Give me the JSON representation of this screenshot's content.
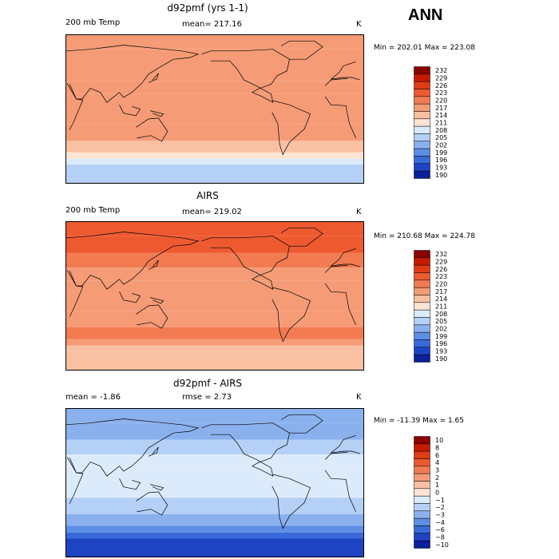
{
  "main_title": "ANN",
  "panels": [
    {
      "title": "d92pmf (yrs 1-1)",
      "left_text": "200 mb Temp",
      "center_text": "mean= 217.16",
      "units": "K",
      "minmax": "Min = 202.01  Max = 223.08"
    },
    {
      "title": "AIRS",
      "left_text": "200 mb Temp",
      "center_text": "mean= 219.02",
      "units": "K",
      "minmax": "Min = 210.68  Max = 224.78"
    },
    {
      "title": "d92pmf - AIRS",
      "left_text": "mean =   -1.86",
      "center_text": "rmse =    2.73",
      "units": "K",
      "minmax": "Min = -11.39  Max =    1.65"
    }
  ],
  "chart_data": [
    {
      "type": "heatmap",
      "title": "d92pmf (yrs 1-1)",
      "variable": "200 mb Temp",
      "units": "K",
      "mean": 217.16,
      "min": 202.01,
      "max": 223.08,
      "levels": [
        "232",
        "229",
        "226",
        "223",
        "220",
        "217",
        "214",
        "211",
        "208",
        "205",
        "202",
        "199",
        "196",
        "193",
        "190"
      ],
      "colors": [
        "#8c0000",
        "#c41a00",
        "#e03c14",
        "#ee5a30",
        "#f27b52",
        "#f59b76",
        "#f9c0a2",
        "#fde4d2",
        "#dcebfc",
        "#b5d0f6",
        "#8ab1ee",
        "#5f8ee6",
        "#3a6ad9",
        "#1e44c4",
        "#0a1f9c"
      ],
      "bands": [
        {
          "lat_from": 90,
          "lat_to": 72,
          "level": 217
        },
        {
          "lat_from": 72,
          "lat_to": 52,
          "level": 217
        },
        {
          "lat_from": 52,
          "lat_to": 34,
          "level": 217
        },
        {
          "lat_from": 34,
          "lat_to": 18,
          "level": 217
        },
        {
          "lat_from": 18,
          "lat_to": -18,
          "level": 217
        },
        {
          "lat_from": -18,
          "lat_to": -38,
          "level": 217
        },
        {
          "lat_from": -38,
          "lat_to": -52,
          "level": 214
        },
        {
          "lat_from": -52,
          "lat_to": -60,
          "level": 211
        },
        {
          "lat_from": -60,
          "lat_to": -67,
          "level": 208
        },
        {
          "lat_from": -67,
          "lat_to": -90,
          "level": 205
        }
      ]
    },
    {
      "type": "heatmap",
      "title": "AIRS",
      "variable": "200 mb Temp",
      "units": "K",
      "mean": 219.02,
      "min": 210.68,
      "max": 224.78,
      "levels": [
        "232",
        "229",
        "226",
        "223",
        "220",
        "217",
        "214",
        "211",
        "208",
        "205",
        "202",
        "199",
        "196",
        "193",
        "190"
      ],
      "colors": [
        "#8c0000",
        "#c41a00",
        "#e03c14",
        "#ee5a30",
        "#f27b52",
        "#f59b76",
        "#f9c0a2",
        "#fde4d2",
        "#dcebfc",
        "#b5d0f6",
        "#8ab1ee",
        "#5f8ee6",
        "#3a6ad9",
        "#1e44c4",
        "#0a1f9c"
      ],
      "bands": [
        {
          "lat_from": 90,
          "lat_to": 72,
          "level": 223
        },
        {
          "lat_from": 72,
          "lat_to": 52,
          "level": 223
        },
        {
          "lat_from": 52,
          "lat_to": 34,
          "level": 220
        },
        {
          "lat_from": 34,
          "lat_to": 18,
          "level": 217
        },
        {
          "lat_from": 18,
          "lat_to": -18,
          "level": 217
        },
        {
          "lat_from": -18,
          "lat_to": -38,
          "level": 217
        },
        {
          "lat_from": -38,
          "lat_to": -52,
          "level": 220
        },
        {
          "lat_from": -52,
          "lat_to": -60,
          "level": 217
        },
        {
          "lat_from": -60,
          "lat_to": -67,
          "level": 214
        },
        {
          "lat_from": -67,
          "lat_to": -90,
          "level": 214
        }
      ]
    },
    {
      "type": "heatmap",
      "title": "d92pmf - AIRS",
      "units": "K",
      "mean": -1.86,
      "rmse": 2.73,
      "min": -11.39,
      "max": 1.65,
      "levels": [
        "10",
        "8",
        "6",
        "4",
        "3",
        "2",
        "1",
        "0",
        "−1",
        "−2",
        "−3",
        "−4",
        "−6",
        "−8",
        "−10"
      ],
      "colors": [
        "#8c0000",
        "#c41a00",
        "#e03c14",
        "#ee5a30",
        "#f27b52",
        "#f59b76",
        "#f9c0a2",
        "#fde4d2",
        "#dcebfc",
        "#b5d0f6",
        "#8ab1ee",
        "#5f8ee6",
        "#3a6ad9",
        "#1e44c4",
        "#0a1f9c"
      ],
      "bands": [
        {
          "lat_from": 90,
          "lat_to": 72,
          "level": "−3"
        },
        {
          "lat_from": 72,
          "lat_to": 52,
          "level": "−3"
        },
        {
          "lat_from": 52,
          "lat_to": 34,
          "level": "−2"
        },
        {
          "lat_from": 34,
          "lat_to": 18,
          "level": "−1"
        },
        {
          "lat_from": 18,
          "lat_to": -18,
          "level": "−1"
        },
        {
          "lat_from": -18,
          "lat_to": -38,
          "level": "−2"
        },
        {
          "lat_from": -38,
          "lat_to": -52,
          "level": "−3"
        },
        {
          "lat_from": -52,
          "lat_to": -60,
          "level": "−4"
        },
        {
          "lat_from": -60,
          "lat_to": -67,
          "level": "−6"
        },
        {
          "lat_from": -67,
          "lat_to": -90,
          "level": "−8"
        }
      ]
    }
  ]
}
